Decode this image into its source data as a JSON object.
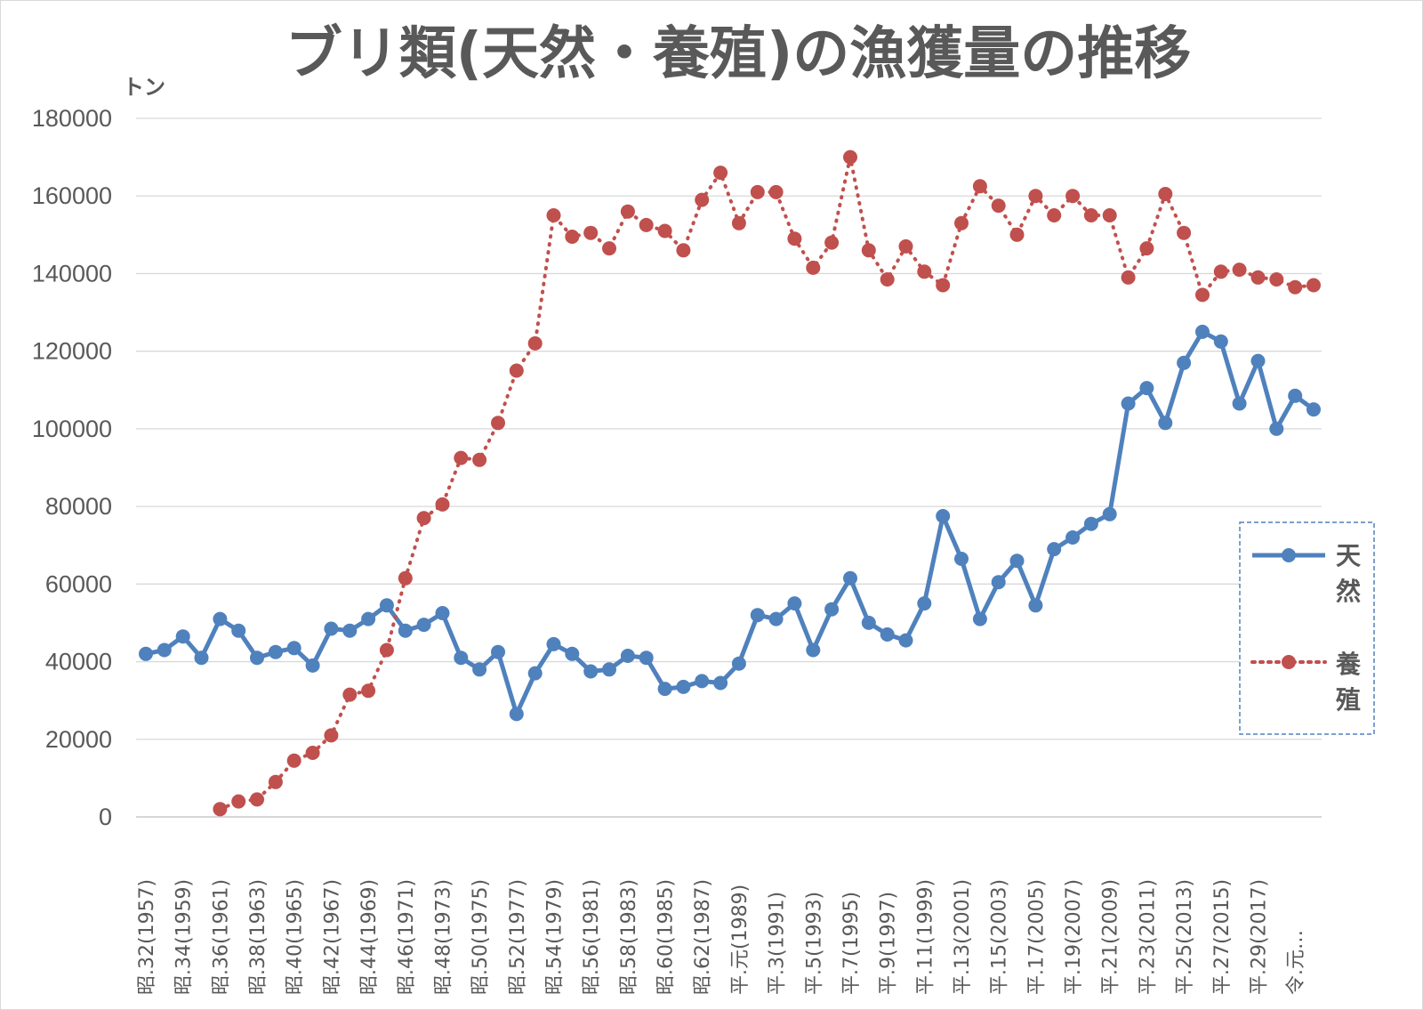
{
  "chart_data": {
    "type": "line",
    "title": "ブリ類(天然・養殖)の漁獲量の推移",
    "ylabel": "トン",
    "ylim": [
      0,
      180000
    ],
    "yticks": [
      0,
      20000,
      40000,
      60000,
      80000,
      100000,
      120000,
      140000,
      160000,
      180000
    ],
    "grid": true,
    "legend_position": "right",
    "categories": [
      "昭.32(1957)",
      "",
      "昭.34(1959)",
      "",
      "昭.36(1961)",
      "",
      "昭.38(1963)",
      "",
      "昭.40(1965)",
      "",
      "昭.42(1967)",
      "",
      "昭.44(1969)",
      "",
      "昭.46(1971)",
      "",
      "昭.48(1973)",
      "",
      "昭.50(1975)",
      "",
      "昭.52(1977)",
      "",
      "昭.54(1979)",
      "",
      "昭.56(1981)",
      "",
      "昭.58(1983)",
      "",
      "昭.60(1985)",
      "",
      "昭.62(1987)",
      "",
      "平.元(1989)",
      "",
      "平.3(1991)",
      "",
      "平.5(1993)",
      "",
      "平.7(1995)",
      "",
      "平.9(1997)",
      "",
      "平.11(1999)",
      "",
      "平.13(2001)",
      "",
      "平.15(2003)",
      "",
      "平.17(2005)",
      "",
      "平.19(2007)",
      "",
      "平.21(2009)",
      "",
      "平.23(2011)",
      "",
      "平.25(2013)",
      "",
      "平.27(2015)",
      "",
      "平.29(2017)",
      "",
      "令.元…",
      ""
    ],
    "series": [
      {
        "name": "天然",
        "color": "#4f81bd",
        "style": "solid",
        "values": [
          42000,
          43000,
          46500,
          41000,
          51000,
          48000,
          41000,
          42500,
          43500,
          39000,
          48500,
          48000,
          51000,
          54500,
          48000,
          49500,
          52500,
          41000,
          38000,
          42500,
          26500,
          37000,
          44500,
          42000,
          37500,
          38000,
          41500,
          41000,
          33000,
          33500,
          35000,
          34500,
          39500,
          52000,
          51000,
          55000,
          43000,
          53500,
          61500,
          50000,
          47000,
          45500,
          55000,
          77500,
          66500,
          51000,
          60500,
          66000,
          54500,
          69000,
          72000,
          75500,
          78000,
          106500,
          110500,
          101500,
          117000,
          125000,
          122500,
          106500,
          117500,
          100000,
          108500,
          105000
        ]
      },
      {
        "name": "養殖",
        "color": "#c0504d",
        "style": "dotted",
        "values": [
          null,
          null,
          null,
          null,
          2000,
          4000,
          4500,
          9000,
          14500,
          16500,
          21000,
          31500,
          32500,
          43000,
          61500,
          77000,
          80500,
          92500,
          92000,
          101500,
          115000,
          122000,
          155000,
          149500,
          150500,
          146500,
          156000,
          152500,
          151000,
          146000,
          159000,
          166000,
          153000,
          161000,
          161000,
          149000,
          141500,
          148000,
          170000,
          146000,
          138500,
          147000,
          140500,
          137000,
          153000,
          162500,
          157500,
          150000,
          160000,
          155000,
          160000,
          155000,
          155000,
          139000,
          146500,
          160500,
          150500,
          134500,
          140500,
          141000,
          139000,
          138500,
          136500,
          137000
        ]
      }
    ]
  }
}
